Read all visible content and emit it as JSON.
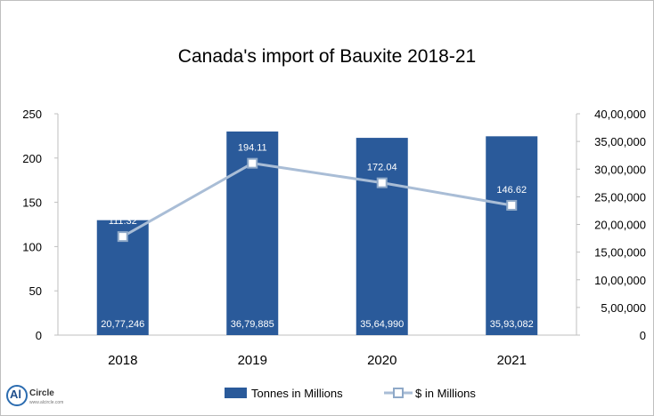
{
  "chart_data": {
    "type": "bar",
    "title": "Canada's import of Bauxite 2018-21",
    "categories": [
      "2018",
      "2019",
      "2020",
      "2021"
    ],
    "y_left": {
      "min": 0,
      "max": 250,
      "step": 50,
      "ticks": [
        "0",
        "50",
        "100",
        "150",
        "200",
        "250"
      ]
    },
    "y_right": {
      "min": 0,
      "max": 4000000,
      "step": 500000,
      "ticks": [
        "0",
        "5,00,000",
        "10,00,000",
        "15,00,000",
        "20,00,000",
        "25,00,000",
        "30,00,000",
        "35,00,000",
        "40,00,000"
      ]
    },
    "series": [
      {
        "name": "Tonnes in Millions",
        "kind": "bar",
        "axis": "right",
        "color": "#2a5a9a",
        "values": [
          2077246,
          3679885,
          3564990,
          3593082
        ],
        "labels": [
          "20,77,246",
          "36,79,885",
          "35,64,990",
          "35,93,082"
        ]
      },
      {
        "name": "$ in Millions",
        "kind": "line",
        "axis": "left",
        "color": "#a9bdd6",
        "marker_color": "#8fa9c8",
        "values": [
          111.32,
          194.11,
          172.04,
          146.62
        ],
        "labels": [
          "111.32",
          "194.11",
          "172.04",
          "146.62"
        ]
      }
    ],
    "legend": "bottom",
    "grid": false
  },
  "logo": {
    "mark": "Al",
    "name": "Circle",
    "sub": "www.alcircle.com"
  }
}
